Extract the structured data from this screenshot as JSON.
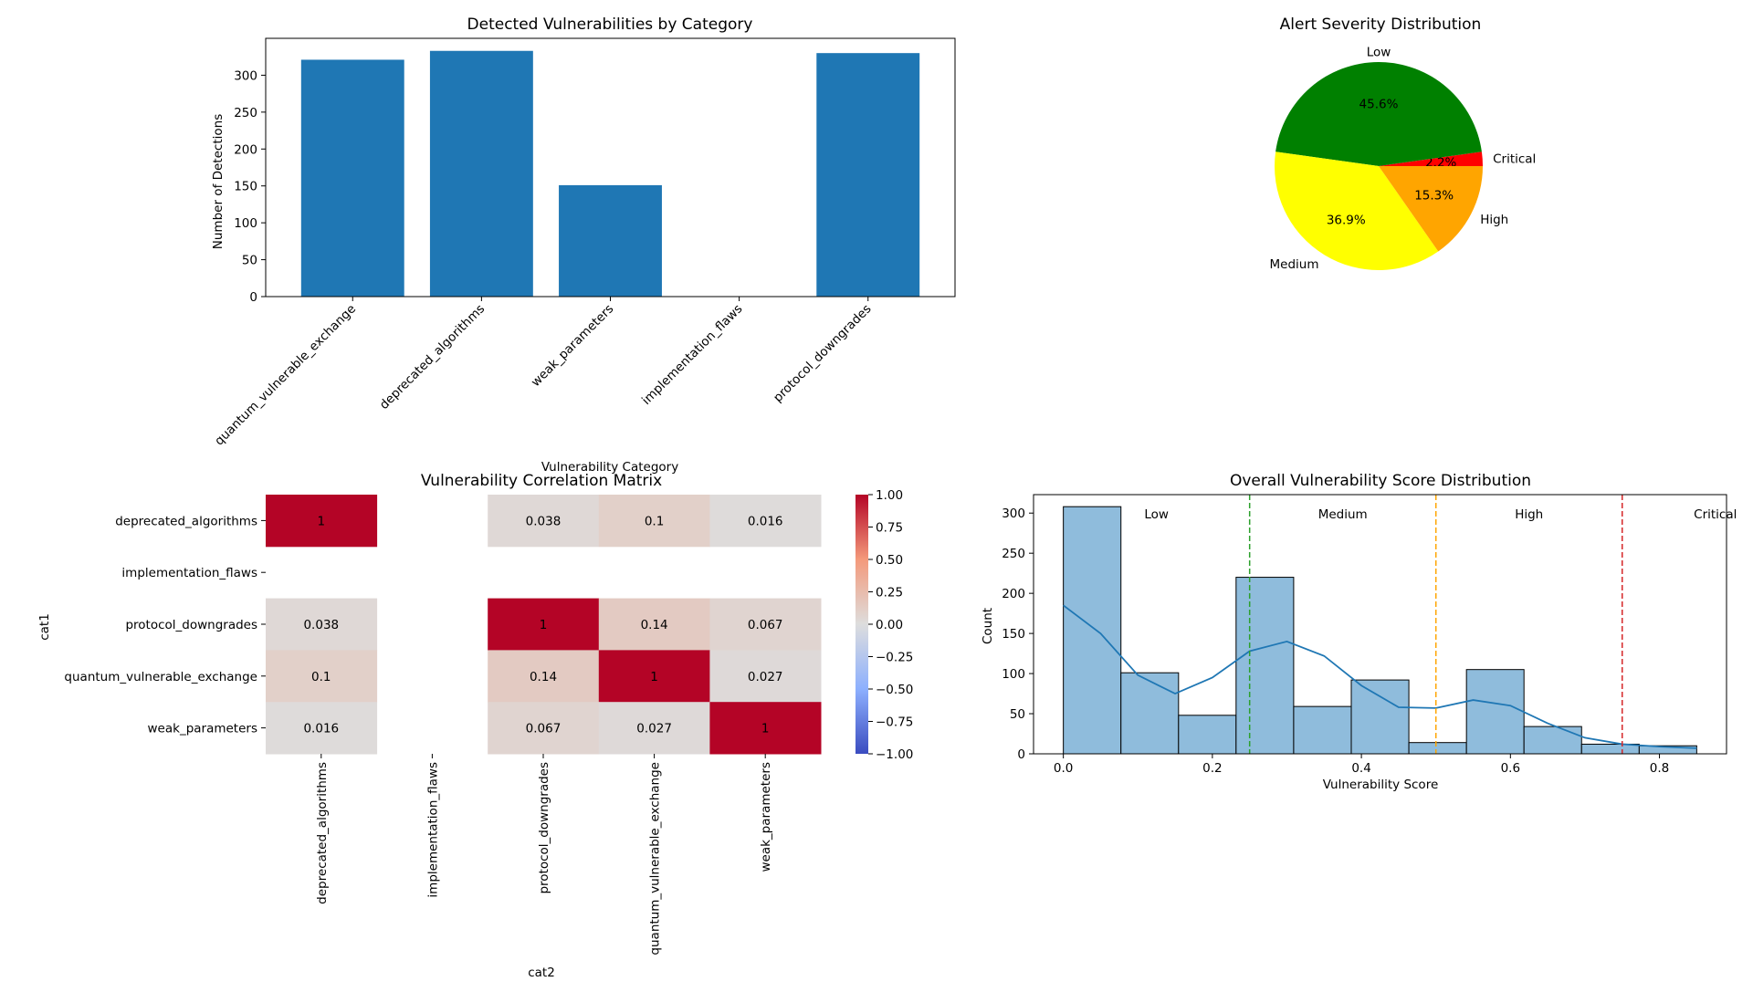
{
  "chart_data": [
    {
      "id": "bar",
      "type": "bar",
      "title": "Detected Vulnerabilities by Category",
      "xlabel": "Vulnerability Category",
      "ylabel": "Number of Detections",
      "categories": [
        "quantum_vulnerable_exchange",
        "deprecated_algorithms",
        "weak_parameters",
        "implementation_flaws",
        "protocol_downgrades"
      ],
      "values": [
        321,
        333,
        151,
        0,
        330
      ],
      "ylim": [
        0,
        350
      ],
      "yticks": [
        0,
        50,
        100,
        150,
        200,
        250,
        300
      ],
      "color": "#1f77b4"
    },
    {
      "id": "pie",
      "type": "pie",
      "title": "Alert Severity Distribution",
      "labels": [
        "Critical",
        "Low",
        "Medium",
        "High"
      ],
      "values": [
        2.2,
        45.6,
        36.9,
        15.3
      ],
      "pct_labels": [
        "2.2%",
        "45.6%",
        "36.9%",
        "15.3%"
      ],
      "colors": [
        "#ff0000",
        "#008000",
        "#ffff00",
        "#ffa500"
      ]
    },
    {
      "id": "heatmap",
      "type": "heatmap",
      "title": "Vulnerability Correlation Matrix",
      "xlabel": "cat2",
      "ylabel": "cat1",
      "rows": [
        "deprecated_algorithms",
        "implementation_flaws",
        "protocol_downgrades",
        "quantum_vulnerable_exchange",
        "weak_parameters"
      ],
      "cols": [
        "deprecated_algorithms",
        "implementation_flaws",
        "protocol_downgrades",
        "quantum_vulnerable_exchange",
        "weak_parameters"
      ],
      "matrix": [
        [
          1,
          null,
          0.038,
          0.1,
          0.016
        ],
        [
          null,
          null,
          null,
          null,
          null
        ],
        [
          0.038,
          null,
          1,
          0.14,
          0.067
        ],
        [
          0.1,
          null,
          0.14,
          1,
          0.027
        ],
        [
          0.016,
          null,
          0.067,
          0.027,
          1
        ]
      ],
      "cell_labels": [
        [
          "1",
          "",
          "0.038",
          "0.1",
          "0.016"
        ],
        [
          "",
          "",
          "",
          "",
          ""
        ],
        [
          "0.038",
          "",
          "1",
          "0.14",
          "0.067"
        ],
        [
          "0.1",
          "",
          "0.14",
          "1",
          "0.027"
        ],
        [
          "0.016",
          "",
          "0.067",
          "0.027",
          "1"
        ]
      ],
      "colorbar_ticks": [
        "1.00",
        "0.75",
        "0.50",
        "0.25",
        "0.00",
        "−0.25",
        "−0.50",
        "−0.75",
        "−1.00"
      ],
      "colorbar_values": [
        1,
        0.75,
        0.5,
        0.25,
        0,
        -0.25,
        -0.5,
        -0.75,
        -1
      ],
      "vmin": -1,
      "vmax": 1,
      "colormap": "coolwarm"
    },
    {
      "id": "hist",
      "type": "bar",
      "title": "Overall Vulnerability Score Distribution",
      "xlabel": "Vulnerability Score",
      "ylabel": "Count",
      "bin_edges": [
        0,
        0.0773,
        0.1546,
        0.2318,
        0.3091,
        0.3864,
        0.4637,
        0.541,
        0.6182,
        0.6955,
        0.7728,
        0.85
      ],
      "counts": [
        308,
        101,
        48,
        220,
        59,
        92,
        14,
        105,
        34,
        12,
        10
      ],
      "kde_x": [
        0,
        0.05,
        0.1,
        0.15,
        0.2,
        0.25,
        0.3,
        0.35,
        0.4,
        0.45,
        0.5,
        0.55,
        0.6,
        0.65,
        0.7,
        0.75,
        0.8,
        0.85
      ],
      "kde_y": [
        185,
        150,
        98,
        75,
        95,
        128,
        140,
        122,
        85,
        58,
        57,
        67,
        60,
        38,
        20,
        12,
        9,
        7
      ],
      "xlim": [
        -0.04,
        0.89
      ],
      "ylim": [
        0,
        323
      ],
      "xticks": [
        0.0,
        0.2,
        0.4,
        0.6,
        0.8
      ],
      "xtick_labels": [
        "0.0",
        "0.2",
        "0.4",
        "0.6",
        "0.8"
      ],
      "yticks": [
        0,
        50,
        100,
        150,
        200,
        250,
        300
      ],
      "thresholds": [
        {
          "value": 0.25,
          "color": "#2ca02c"
        },
        {
          "value": 0.5,
          "color": "#ffa500"
        },
        {
          "value": 0.75,
          "color": "#d62728"
        }
      ],
      "annotations": [
        {
          "text": "Low",
          "x": 0.125,
          "color": "#008000"
        },
        {
          "text": "Medium",
          "x": 0.375,
          "color": "#ffa500"
        },
        {
          "text": "High",
          "x": 0.625,
          "color": "#ff0000"
        },
        {
          "text": "Critical",
          "x": 0.875,
          "color": "#8b0000"
        }
      ],
      "bar_color": "#8fbcdc",
      "kde_color": "#1f77b4"
    }
  ]
}
